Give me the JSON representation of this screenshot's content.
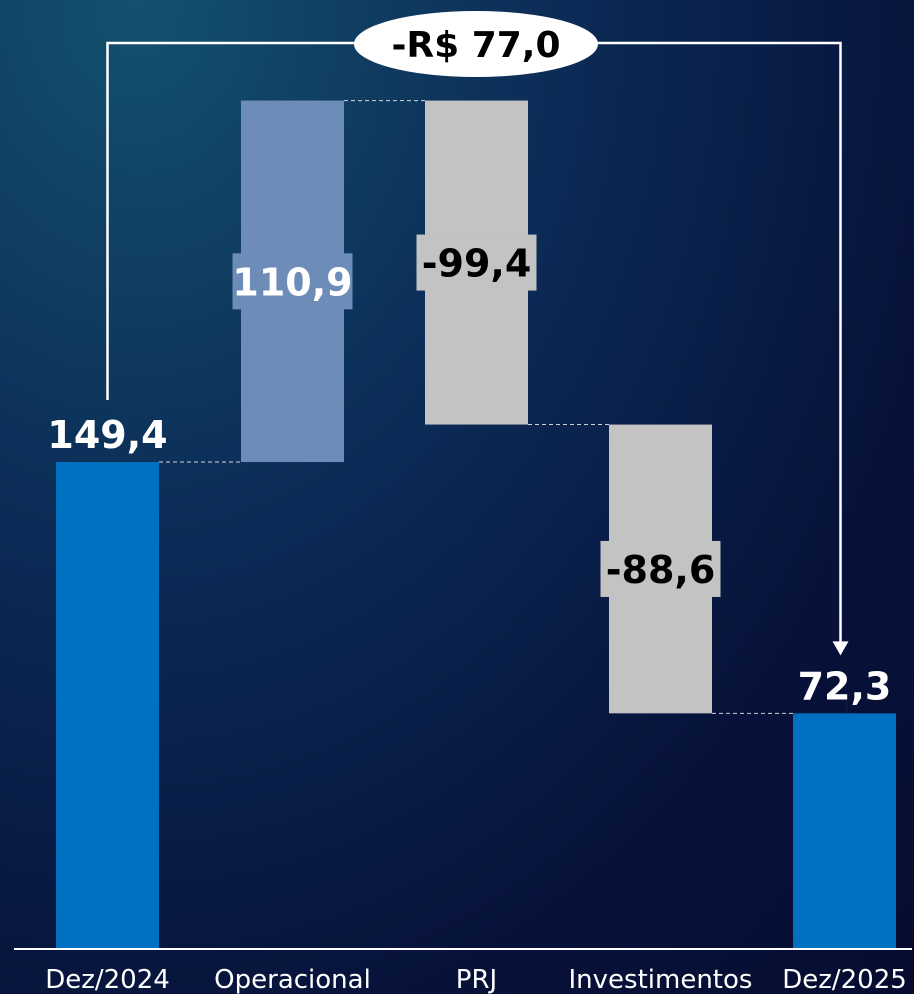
{
  "chart_data": {
    "type": "waterfall",
    "categories": [
      "Dez/2024",
      "Operacional",
      "PRJ",
      "Investimentos",
      "Dez/2025"
    ],
    "values": [
      149.4,
      110.9,
      -99.4,
      -88.6,
      72.3
    ],
    "value_labels": [
      "149,4",
      "110,9",
      "-99,4",
      "-88,6",
      "72,3"
    ],
    "kinds": [
      "total",
      "increase",
      "decrease",
      "decrease",
      "total"
    ],
    "total_change_label": "-R$ 77,0",
    "ylim": [
      0,
      290
    ],
    "colors": {
      "total": "#0070c0",
      "increase": "#6e8cb8",
      "decrease": "#c3c3c3",
      "label_light": "#ffffff",
      "label_dark": "#000000",
      "connector": "#ffffff"
    }
  }
}
